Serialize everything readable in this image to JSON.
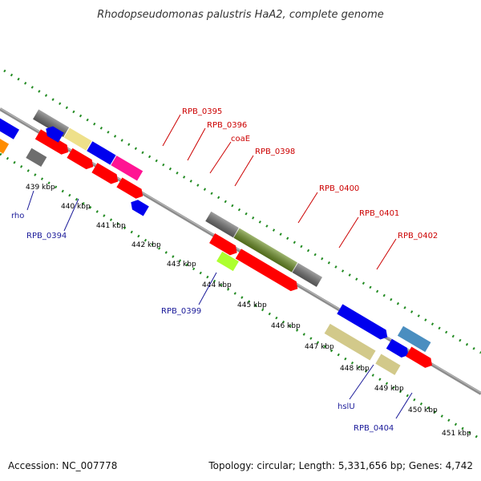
{
  "title": "Rhodopseudomonas palustris HaA2, complete genome",
  "footer": {
    "accession": "Accession: NC_007778",
    "topology": "Topology: circular; Length: 5,331,656 bp; Genes: 4,742"
  },
  "ticks": [
    "439 kbp",
    "440 kbp",
    "441 kbp",
    "442 kbp",
    "443 kbp",
    "444 kbp",
    "445 kbp",
    "446 kbp",
    "447 kbp",
    "448 kbp",
    "449 kbp",
    "450 kbp",
    "451 kbp"
  ],
  "gene_labels_red": [
    "RPB_0395",
    "RPB_0396",
    "coaE",
    "RPB_0398",
    "RPB_0400",
    "RPB_0401",
    "RPB_0402"
  ],
  "gene_labels_blue": [
    "rho",
    "RPB_0394",
    "RPB_0399",
    "hslU",
    "RPB_0404"
  ],
  "colors": {
    "backbone": "#8c8c8c",
    "dots": "#228b22",
    "red": "#ff0000",
    "blue": "#0000ee",
    "gray": "#6e6e6e",
    "orange": "#ff8c00",
    "light_gray": "#c8c8c8",
    "khaki": "#eee08a",
    "magenta": "#ff1493",
    "olive": "#6b8e23",
    "lime": "#adff2f",
    "tan": "#d2c98a",
    "steel": "#4a8ec0"
  }
}
